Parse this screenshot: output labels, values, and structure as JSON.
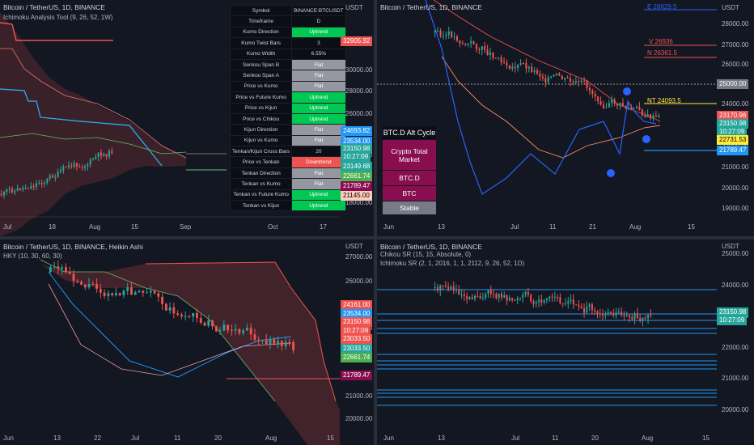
{
  "colors": {
    "bg": "#131722",
    "up": "#26a69a",
    "down": "#ef5350",
    "grid": "#2a2e39"
  },
  "p1": {
    "title": "Bitcoin / TetherUS, 1D, BINANCE",
    "subtitle": "Ichimoku Analysis Tool (9, 26, 52, 1W)",
    "usdt": "USDT",
    "price_ticks": [
      "30000.00",
      "28000.00",
      "26000.00",
      "24000.00",
      "22000.00",
      "20000.00",
      "18000.00"
    ],
    "top_tag": "32905.92",
    "tags": [
      "24693.82",
      "23534.00",
      "23150.98",
      "10:27:09",
      "23149.68",
      "22661.74",
      "21789.47",
      "21145.00"
    ],
    "x_labels": [
      "Jul",
      "18",
      "Aug",
      "15",
      "Sep",
      "Oct",
      "17"
    ],
    "table": [
      [
        "Symbol",
        "BINANCE:BTCUSDT"
      ],
      [
        "Timeframe",
        "D"
      ],
      [
        "Kumo Direction",
        "Uptrend"
      ],
      [
        "Kumo Twist Bars",
        "3"
      ],
      [
        "Kumo Width",
        "6.55%"
      ],
      [
        "Senkou Span B",
        "Flat"
      ],
      [
        "Senkou Span A",
        "Flat"
      ],
      [
        "Price vs Kumo",
        "Flat"
      ],
      [
        "Price vs Future Kumo",
        "Uptrend"
      ],
      [
        "Price vs Kijun",
        "Uptrend"
      ],
      [
        "Price vs Chikou",
        "Uptrend"
      ],
      [
        "Kijun Direction",
        "Flat"
      ],
      [
        "Kijun vs Kumo",
        "Flat"
      ],
      [
        "Tenkan/Kijun Cross Bars",
        "20"
      ],
      [
        "Price vs Tenkan",
        "Downtrend"
      ],
      [
        "Tenkan Direction",
        "Flat"
      ],
      [
        "Tenkan vs Kumo",
        "Flat"
      ],
      [
        "Tenkan vs Future Kumo",
        "Uptrend"
      ],
      [
        "Tenkan vs Kijun",
        "Uptrend"
      ]
    ]
  },
  "p2": {
    "title": "Bitcoin / TetherUS, 1D, BINANCE",
    "usdt": "USDT",
    "price_ticks": [
      "28000.00",
      "27000.00",
      "26000.00",
      "25000.00",
      "24000.00",
      "23000.00",
      "22000.00",
      "21000.00",
      "20000.00",
      "19000.00"
    ],
    "tags": [
      "25000.00",
      "23170.96",
      "23150.98",
      "10:27:09",
      "22731.53",
      "21789.47"
    ],
    "levels": [
      "E 28629.5",
      "V 26936",
      "N 26361.5",
      "NT 24093.5"
    ],
    "alt_cycle": {
      "title": "BTC.D Alt Cycle",
      "items": [
        "Crypto Total Market",
        "BTC.D",
        "BTC",
        "Stable"
      ]
    },
    "x_labels": [
      "Jun",
      "13",
      "Jul",
      "11",
      "21",
      "Aug",
      "15"
    ]
  },
  "p3": {
    "title": "Bitcoin / TetherUS, 1D, BINANCE, Heikin Ashi",
    "subtitle": "HKY (10, 30, 60, 30)",
    "usdt": "USDT",
    "price_ticks": [
      "27000.00",
      "26000.00",
      "25000.00",
      "24000.00",
      "23000.00",
      "22000.00",
      "21000.00",
      "20000.00"
    ],
    "tags": [
      "24161.00",
      "23534.00",
      "23150.98",
      "10:27:09",
      "23033.50",
      "23033.50",
      "22661.74",
      "21789.47"
    ],
    "x_labels": [
      "Jun",
      "13",
      "22",
      "Jul",
      "11",
      "20",
      "Aug",
      "15"
    ]
  },
  "p4": {
    "title": "Bitcoin / TetherUS, 1D, BINANCE",
    "subtitle1": "Chikou SR (15, 15, Absolute, 0)",
    "subtitle2": "Ichimoku SR (2, 1, 2016, 1, 1, 2112, 9, 26, 52, 1D)",
    "usdt": "USDT",
    "price_ticks": [
      "25000.00",
      "24000.00",
      "23000.00",
      "22000.00",
      "21000.00",
      "20000.00"
    ],
    "tags": [
      "23150.98",
      "10:27:09"
    ],
    "x_labels": [
      "Jun",
      "13",
      "Jul",
      "11",
      "20",
      "Aug",
      "15"
    ]
  }
}
